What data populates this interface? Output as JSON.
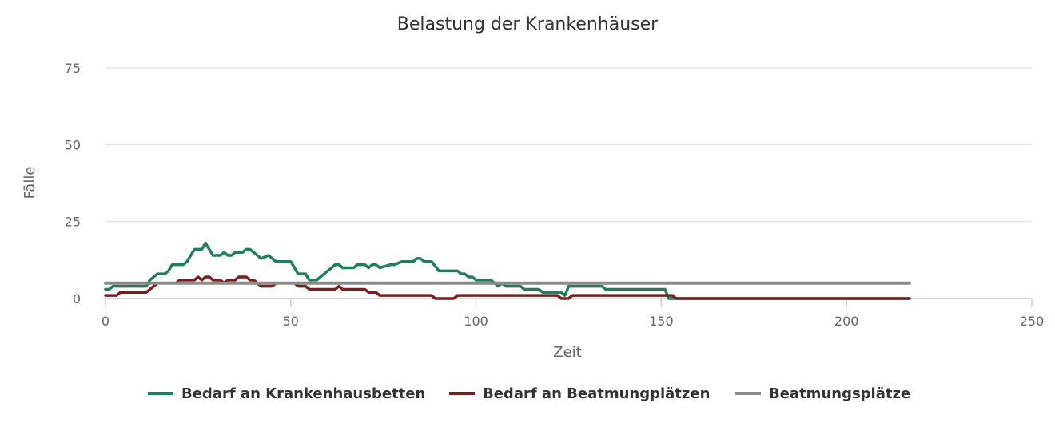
{
  "chart_data": {
    "type": "line",
    "title": "Belastung der Krankenhäuser",
    "xlabel": "Zeit",
    "ylabel": "Fälle",
    "xlim": [
      0,
      250
    ],
    "ylim": [
      0,
      75
    ],
    "x_ticks": [
      "0",
      "50",
      "100",
      "150",
      "200",
      "250"
    ],
    "y_ticks": [
      "0",
      "25",
      "50",
      "75"
    ],
    "grid": "horizontal",
    "legend": "bottom",
    "series": [
      {
        "name": "Bedarf an Krankenhausbetten",
        "color": "#1e7f5c",
        "points": [
          [
            0,
            3
          ],
          [
            1,
            3
          ],
          [
            2,
            4
          ],
          [
            10,
            4
          ],
          [
            11,
            4
          ],
          [
            12,
            6
          ],
          [
            13,
            7
          ],
          [
            14,
            8
          ],
          [
            16,
            8
          ],
          [
            17,
            9
          ],
          [
            18,
            11
          ],
          [
            21,
            11
          ],
          [
            22,
            12
          ],
          [
            23,
            14
          ],
          [
            24,
            16
          ],
          [
            26,
            16
          ],
          [
            27,
            18
          ],
          [
            28,
            16
          ],
          [
            29,
            14
          ],
          [
            31,
            14
          ],
          [
            32,
            15
          ],
          [
            33,
            14
          ],
          [
            34,
            14
          ],
          [
            35,
            15
          ],
          [
            37,
            15
          ],
          [
            38,
            16
          ],
          [
            39,
            16
          ],
          [
            40,
            15
          ],
          [
            42,
            13
          ],
          [
            44,
            14
          ],
          [
            46,
            12
          ],
          [
            50,
            12
          ],
          [
            52,
            8
          ],
          [
            54,
            8
          ],
          [
            55,
            6
          ],
          [
            57,
            6
          ],
          [
            59,
            8
          ],
          [
            61,
            10
          ],
          [
            62,
            11
          ],
          [
            63,
            11
          ],
          [
            64,
            10
          ],
          [
            67,
            10
          ],
          [
            68,
            11
          ],
          [
            70,
            11
          ],
          [
            71,
            10
          ],
          [
            72,
            11
          ],
          [
            73,
            11
          ],
          [
            74,
            10
          ],
          [
            77,
            11
          ],
          [
            78,
            11
          ],
          [
            80,
            12
          ],
          [
            83,
            12
          ],
          [
            84,
            13
          ],
          [
            85,
            13
          ],
          [
            86,
            12
          ],
          [
            88,
            12
          ],
          [
            90,
            9
          ],
          [
            95,
            9
          ],
          [
            96,
            8
          ],
          [
            97,
            8
          ],
          [
            98,
            7
          ],
          [
            99,
            7
          ],
          [
            100,
            6
          ],
          [
            104,
            6
          ],
          [
            106,
            4
          ],
          [
            107,
            5
          ],
          [
            108,
            4
          ],
          [
            112,
            4
          ],
          [
            113,
            3
          ],
          [
            117,
            3
          ],
          [
            118,
            2
          ],
          [
            123,
            2
          ],
          [
            124,
            1
          ],
          [
            125,
            4
          ],
          [
            134,
            4
          ],
          [
            135,
            3
          ],
          [
            151,
            3
          ],
          [
            152,
            0
          ],
          [
            217,
            0
          ]
        ]
      },
      {
        "name": "Bedarf an Beatmungplätzen",
        "color": "#7a1f1f",
        "points": [
          [
            0,
            1
          ],
          [
            3,
            1
          ],
          [
            4,
            2
          ],
          [
            11,
            2
          ],
          [
            12,
            3
          ],
          [
            13,
            4
          ],
          [
            14,
            5
          ],
          [
            19,
            5
          ],
          [
            20,
            6
          ],
          [
            24,
            6
          ],
          [
            25,
            7
          ],
          [
            26,
            6
          ],
          [
            27,
            7
          ],
          [
            28,
            7
          ],
          [
            29,
            6
          ],
          [
            31,
            6
          ],
          [
            32,
            5
          ],
          [
            33,
            6
          ],
          [
            35,
            6
          ],
          [
            36,
            7
          ],
          [
            38,
            7
          ],
          [
            39,
            6
          ],
          [
            40,
            6
          ],
          [
            41,
            5
          ],
          [
            42,
            4
          ],
          [
            45,
            4
          ],
          [
            46,
            5
          ],
          [
            51,
            5
          ],
          [
            52,
            4
          ],
          [
            54,
            4
          ],
          [
            55,
            3
          ],
          [
            62,
            3
          ],
          [
            63,
            4
          ],
          [
            64,
            3
          ],
          [
            70,
            3
          ],
          [
            71,
            2
          ],
          [
            73,
            2
          ],
          [
            74,
            1
          ],
          [
            88,
            1
          ],
          [
            89,
            0
          ],
          [
            94,
            0
          ],
          [
            95,
            1
          ],
          [
            122,
            1
          ],
          [
            123,
            0
          ],
          [
            125,
            0
          ],
          [
            126,
            1
          ],
          [
            152,
            1
          ],
          [
            153,
            1
          ],
          [
            154,
            0
          ],
          [
            217,
            0
          ]
        ]
      },
      {
        "name": "Beatmungsplätze",
        "color": "#8c8c8c",
        "points": [
          [
            0,
            5
          ],
          [
            217,
            5
          ]
        ]
      }
    ]
  }
}
